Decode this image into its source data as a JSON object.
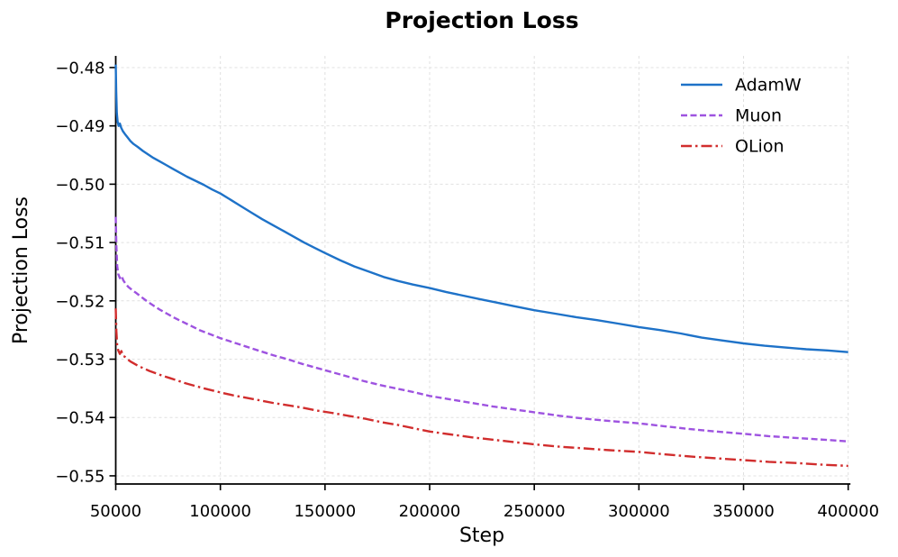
{
  "chart_data": {
    "type": "line",
    "title": "Projection Loss",
    "xlabel": "Step",
    "ylabel": "Projection Loss",
    "xlim": [
      50000,
      400000
    ],
    "ylim": [
      -0.5514,
      -0.478
    ],
    "grid": true,
    "grid_color": "#e0e0e0",
    "axis_color": "#000000",
    "legend_position": "upper right",
    "xticks": [
      {
        "v": 50000,
        "label": "50000"
      },
      {
        "v": 100000,
        "label": "100000"
      },
      {
        "v": 150000,
        "label": "150000"
      },
      {
        "v": 200000,
        "label": "200000"
      },
      {
        "v": 250000,
        "label": "250000"
      },
      {
        "v": 300000,
        "label": "300000"
      },
      {
        "v": 350000,
        "label": "350000"
      },
      {
        "v": 400000,
        "label": "400000"
      }
    ],
    "yticks": [
      {
        "v": -0.48,
        "label": "−0.48"
      },
      {
        "v": -0.49,
        "label": "−0.49"
      },
      {
        "v": -0.5,
        "label": "−0.50"
      },
      {
        "v": -0.51,
        "label": "−0.51"
      },
      {
        "v": -0.52,
        "label": "−0.52"
      },
      {
        "v": -0.53,
        "label": "−0.53"
      },
      {
        "v": -0.54,
        "label": "−0.54"
      },
      {
        "v": -0.55,
        "label": "−0.55"
      }
    ],
    "series": [
      {
        "name": "AdamW",
        "color": "#1e72c8",
        "style": "solid",
        "points": [
          [
            50000,
            -0.4795
          ],
          [
            50200,
            -0.484
          ],
          [
            50500,
            -0.4878
          ],
          [
            50900,
            -0.4893
          ],
          [
            51400,
            -0.49
          ],
          [
            52000,
            -0.4896
          ],
          [
            52600,
            -0.4903
          ],
          [
            53400,
            -0.4909
          ],
          [
            54400,
            -0.4914
          ],
          [
            55500,
            -0.4919
          ],
          [
            57000,
            -0.4926
          ],
          [
            58500,
            -0.4931
          ],
          [
            60500,
            -0.4936
          ],
          [
            63000,
            -0.4943
          ],
          [
            65500,
            -0.4949
          ],
          [
            68000,
            -0.4955
          ],
          [
            71000,
            -0.4961
          ],
          [
            74000,
            -0.4967
          ],
          [
            77000,
            -0.4973
          ],
          [
            80000,
            -0.4979
          ],
          [
            84000,
            -0.4987
          ],
          [
            88000,
            -0.4994
          ],
          [
            92000,
            -0.5001
          ],
          [
            96000,
            -0.5009
          ],
          [
            100000,
            -0.5016
          ],
          [
            105000,
            -0.5027
          ],
          [
            110000,
            -0.5038
          ],
          [
            115000,
            -0.5049
          ],
          [
            120000,
            -0.506
          ],
          [
            125000,
            -0.507
          ],
          [
            130000,
            -0.508
          ],
          [
            135000,
            -0.509
          ],
          [
            140000,
            -0.51
          ],
          [
            145000,
            -0.5109
          ],
          [
            150000,
            -0.5118
          ],
          [
            157000,
            -0.513
          ],
          [
            164000,
            -0.5141
          ],
          [
            171000,
            -0.515
          ],
          [
            178000,
            -0.5159
          ],
          [
            185000,
            -0.5166
          ],
          [
            192000,
            -0.5172
          ],
          [
            200000,
            -0.5178
          ],
          [
            208000,
            -0.5185
          ],
          [
            216000,
            -0.5191
          ],
          [
            224000,
            -0.5197
          ],
          [
            232000,
            -0.5203
          ],
          [
            240000,
            -0.5209
          ],
          [
            250000,
            -0.5216
          ],
          [
            260000,
            -0.5222
          ],
          [
            270000,
            -0.5228
          ],
          [
            280000,
            -0.5233
          ],
          [
            290000,
            -0.5239
          ],
          [
            300000,
            -0.5245
          ],
          [
            310000,
            -0.525
          ],
          [
            320000,
            -0.5256
          ],
          [
            330000,
            -0.5263
          ],
          [
            340000,
            -0.5268
          ],
          [
            350000,
            -0.5273
          ],
          [
            360000,
            -0.5277
          ],
          [
            370000,
            -0.528
          ],
          [
            380000,
            -0.5283
          ],
          [
            390000,
            -0.5285
          ],
          [
            400000,
            -0.5288
          ]
        ]
      },
      {
        "name": "Muon",
        "color": "#9e53e0",
        "style": "dashed",
        "points": [
          [
            50000,
            -0.5056
          ],
          [
            50300,
            -0.5105
          ],
          [
            50700,
            -0.514
          ],
          [
            51200,
            -0.5154
          ],
          [
            52000,
            -0.5161
          ],
          [
            52800,
            -0.5157
          ],
          [
            53600,
            -0.5165
          ],
          [
            54600,
            -0.517
          ],
          [
            56000,
            -0.5176
          ],
          [
            58000,
            -0.5182
          ],
          [
            60000,
            -0.5187
          ],
          [
            62500,
            -0.5194
          ],
          [
            65000,
            -0.5201
          ],
          [
            68000,
            -0.5208
          ],
          [
            71000,
            -0.5215
          ],
          [
            74500,
            -0.5222
          ],
          [
            78000,
            -0.5229
          ],
          [
            82000,
            -0.5236
          ],
          [
            86000,
            -0.5243
          ],
          [
            90000,
            -0.525
          ],
          [
            95000,
            -0.5257
          ],
          [
            100000,
            -0.5264
          ],
          [
            106000,
            -0.5271
          ],
          [
            112000,
            -0.5278
          ],
          [
            118000,
            -0.5285
          ],
          [
            125000,
            -0.5293
          ],
          [
            132000,
            -0.53
          ],
          [
            139000,
            -0.5308
          ],
          [
            146000,
            -0.5315
          ],
          [
            153000,
            -0.5322
          ],
          [
            161000,
            -0.533
          ],
          [
            169000,
            -0.5338
          ],
          [
            177000,
            -0.5345
          ],
          [
            185000,
            -0.5351
          ],
          [
            193000,
            -0.5357
          ],
          [
            200000,
            -0.5363
          ],
          [
            210000,
            -0.5369
          ],
          [
            220000,
            -0.5375
          ],
          [
            230000,
            -0.5381
          ],
          [
            240000,
            -0.5386
          ],
          [
            250000,
            -0.5391
          ],
          [
            262000,
            -0.5397
          ],
          [
            274000,
            -0.5402
          ],
          [
            286000,
            -0.5406
          ],
          [
            300000,
            -0.541
          ],
          [
            312000,
            -0.5415
          ],
          [
            325000,
            -0.542
          ],
          [
            337000,
            -0.5424
          ],
          [
            350000,
            -0.5428
          ],
          [
            362000,
            -0.5432
          ],
          [
            375000,
            -0.5435
          ],
          [
            388000,
            -0.5438
          ],
          [
            400000,
            -0.5441
          ]
        ]
      },
      {
        "name": "OLion",
        "color": "#d12d2d",
        "style": "dashdot",
        "points": [
          [
            50000,
            -0.5213
          ],
          [
            50300,
            -0.5252
          ],
          [
            50700,
            -0.5276
          ],
          [
            51200,
            -0.5285
          ],
          [
            52000,
            -0.5291
          ],
          [
            52700,
            -0.5286
          ],
          [
            53400,
            -0.5294
          ],
          [
            54400,
            -0.5296
          ],
          [
            55600,
            -0.53
          ],
          [
            57000,
            -0.5304
          ],
          [
            59000,
            -0.5308
          ],
          [
            61000,
            -0.5312
          ],
          [
            63500,
            -0.5316
          ],
          [
            66000,
            -0.532
          ],
          [
            69000,
            -0.5324
          ],
          [
            72000,
            -0.5328
          ],
          [
            75500,
            -0.5332
          ],
          [
            79000,
            -0.5336
          ],
          [
            83000,
            -0.5341
          ],
          [
            87000,
            -0.5345
          ],
          [
            91000,
            -0.5349
          ],
          [
            95500,
            -0.5353
          ],
          [
            100000,
            -0.5357
          ],
          [
            106000,
            -0.5362
          ],
          [
            112000,
            -0.5366
          ],
          [
            118000,
            -0.537
          ],
          [
            125000,
            -0.5375
          ],
          [
            132000,
            -0.5379
          ],
          [
            139000,
            -0.5383
          ],
          [
            146000,
            -0.5388
          ],
          [
            153000,
            -0.5392
          ],
          [
            161000,
            -0.5397
          ],
          [
            169000,
            -0.5402
          ],
          [
            177000,
            -0.5408
          ],
          [
            185000,
            -0.5413
          ],
          [
            193000,
            -0.5419
          ],
          [
            200000,
            -0.5424
          ],
          [
            210000,
            -0.5429
          ],
          [
            220000,
            -0.5434
          ],
          [
            230000,
            -0.5438
          ],
          [
            240000,
            -0.5442
          ],
          [
            250000,
            -0.5446
          ],
          [
            262000,
            -0.545
          ],
          [
            274000,
            -0.5453
          ],
          [
            286000,
            -0.5456
          ],
          [
            300000,
            -0.5459
          ],
          [
            312000,
            -0.5463
          ],
          [
            325000,
            -0.5467
          ],
          [
            337000,
            -0.547
          ],
          [
            350000,
            -0.5473
          ],
          [
            362000,
            -0.5476
          ],
          [
            375000,
            -0.5478
          ],
          [
            388000,
            -0.5481
          ],
          [
            400000,
            -0.5483
          ]
        ]
      }
    ]
  }
}
